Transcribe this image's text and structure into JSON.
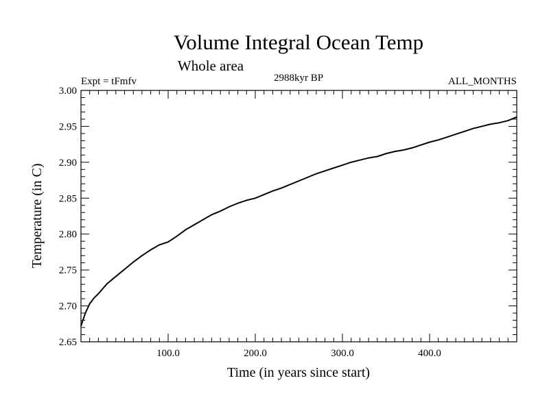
{
  "chart_data": {
    "type": "line",
    "title": "Volume Integral Ocean Temp",
    "subtitle": "Whole area",
    "experiment_label": "Expt = tFmfv",
    "period_label": "2988kyr BP",
    "months_label": "ALL_MONTHS",
    "xlabel": "Time (in years since start)",
    "ylabel": "Temperature (in C)",
    "xlim": [
      0,
      500
    ],
    "ylim": [
      2.65,
      3.0
    ],
    "x_ticks": [
      {
        "value": 100,
        "label": "100.0"
      },
      {
        "value": 200,
        "label": "200.0"
      },
      {
        "value": 300,
        "label": "300.0"
      },
      {
        "value": 400,
        "label": "400.0"
      }
    ],
    "y_ticks": [
      {
        "value": 2.65,
        "label": "2.65"
      },
      {
        "value": 2.7,
        "label": "2.70"
      },
      {
        "value": 2.75,
        "label": "2.75"
      },
      {
        "value": 2.8,
        "label": "2.80"
      },
      {
        "value": 2.85,
        "label": "2.85"
      },
      {
        "value": 2.9,
        "label": "2.90"
      },
      {
        "value": 2.95,
        "label": "2.95"
      },
      {
        "value": 3.0,
        "label": "3.00"
      }
    ],
    "series": [
      {
        "name": "Volume integral ocean temperature",
        "x": [
          0,
          5,
          10,
          15,
          20,
          30,
          40,
          50,
          60,
          70,
          80,
          90,
          100,
          110,
          120,
          130,
          140,
          150,
          160,
          170,
          180,
          190,
          200,
          210,
          220,
          230,
          240,
          250,
          260,
          270,
          280,
          290,
          300,
          310,
          320,
          330,
          340,
          350,
          360,
          370,
          380,
          390,
          400,
          410,
          420,
          430,
          440,
          450,
          460,
          470,
          480,
          490,
          500
        ],
        "values": [
          2.672,
          2.69,
          2.703,
          2.711,
          2.717,
          2.731,
          2.741,
          2.751,
          2.761,
          2.77,
          2.778,
          2.785,
          2.789,
          2.797,
          2.806,
          2.813,
          2.82,
          2.827,
          2.832,
          2.838,
          2.843,
          2.847,
          2.85,
          2.855,
          2.86,
          2.864,
          2.869,
          2.874,
          2.879,
          2.884,
          2.888,
          2.892,
          2.896,
          2.9,
          2.903,
          2.906,
          2.908,
          2.912,
          2.915,
          2.917,
          2.92,
          2.924,
          2.928,
          2.931,
          2.935,
          2.939,
          2.943,
          2.947,
          2.95,
          2.953,
          2.955,
          2.958,
          2.963
        ]
      }
    ]
  }
}
